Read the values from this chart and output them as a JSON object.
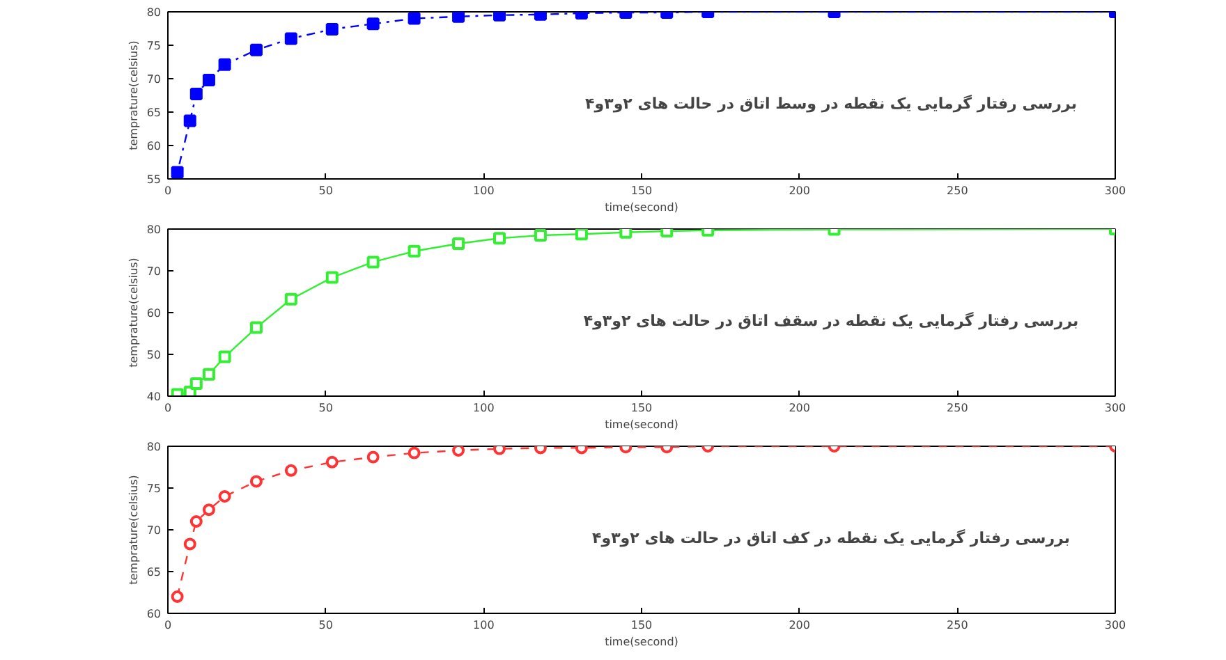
{
  "chart_data": [
    {
      "type": "line",
      "xlabel": "time(second)",
      "ylabel": "temprature(celsius)",
      "x": [
        3,
        7,
        9,
        13,
        18,
        28,
        39,
        52,
        65,
        78,
        92,
        105,
        118,
        131,
        145,
        158,
        171,
        211,
        300
      ],
      "xlim": [
        0,
        300
      ],
      "xticks": [
        0,
        50,
        100,
        150,
        200,
        250,
        300
      ],
      "ylim": [
        55,
        80
      ],
      "yticks": [
        55,
        60,
        65,
        70,
        75,
        80
      ],
      "grid": false,
      "marker": "square",
      "line_style": "dotted",
      "series": [
        {
          "color": "#0000ff",
          "values": [
            56.0,
            63.7,
            67.7,
            69.8,
            72.1,
            74.3,
            76.0,
            77.4,
            78.2,
            79.0,
            79.3,
            79.5,
            79.6,
            79.8,
            79.9,
            79.9,
            80,
            80,
            80
          ]
        }
      ],
      "annotations": [
        "بررسی رفتار گرمایی یک نقطه در وسط اتاق در حالت های ۲و۳و۴"
      ]
    },
    {
      "type": "line",
      "xlabel": "time(second)",
      "ylabel": "temprature(celsius)",
      "x": [
        3,
        7,
        9,
        13,
        18,
        28,
        39,
        52,
        65,
        78,
        92,
        105,
        118,
        131,
        145,
        158,
        171,
        211,
        300
      ],
      "xlim": [
        0,
        300
      ],
      "xticks": [
        0,
        50,
        100,
        150,
        200,
        250,
        300
      ],
      "ylim": [
        40,
        80
      ],
      "yticks": [
        40,
        50,
        60,
        70,
        80
      ],
      "grid": false,
      "marker": "square",
      "line_style": "solid",
      "series": [
        {
          "color": "#33ee33",
          "values": [
            40.4,
            41.0,
            43.0,
            45.2,
            49.4,
            56.4,
            63.2,
            68.4,
            72.1,
            74.7,
            76.5,
            77.8,
            78.5,
            78.8,
            79.2,
            79.5,
            79.7,
            79.9,
            80
          ]
        }
      ],
      "annotations": [
        "بررسی رفتار گرمایی یک نقطه در سقف اتاق در حالت های ۲و۳و۴"
      ]
    },
    {
      "type": "line",
      "xlabel": "time(second)",
      "ylabel": "temprature(celsius)",
      "x": [
        3,
        7,
        9,
        13,
        18,
        28,
        39,
        52,
        65,
        78,
        92,
        105,
        118,
        131,
        145,
        158,
        171,
        211,
        300
      ],
      "xlim": [
        0,
        300
      ],
      "xticks": [
        0,
        50,
        100,
        150,
        200,
        250,
        300
      ],
      "ylim": [
        60,
        80
      ],
      "yticks": [
        60,
        65,
        70,
        75,
        80
      ],
      "grid": false,
      "marker": "circle",
      "line_style": "dashed",
      "series": [
        {
          "color": "#ff3333",
          "values": [
            62.0,
            68.3,
            71.0,
            72.4,
            74.0,
            75.8,
            77.1,
            78.1,
            78.7,
            79.2,
            79.5,
            79.7,
            79.8,
            79.8,
            79.9,
            79.9,
            80,
            80,
            80
          ]
        }
      ],
      "annotations": [
        "بررسی رفتار گرمایی یک نقطه در کف اتاق در حالت های ۲و۳و۴"
      ]
    }
  ]
}
